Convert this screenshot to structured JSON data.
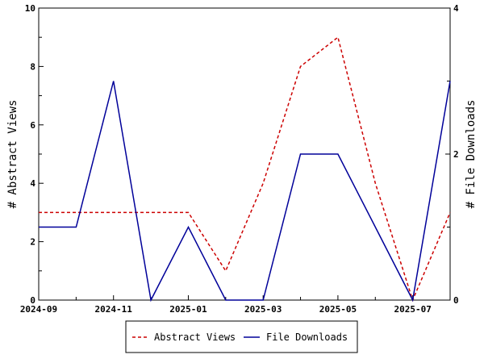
{
  "chart_data": {
    "type": "line",
    "x": [
      "2024-09",
      "2024-10",
      "2024-11",
      "2024-12",
      "2025-01",
      "2025-02",
      "2025-03",
      "2025-04",
      "2025-05",
      "2025-06",
      "2025-07",
      "2025-08"
    ],
    "x_tick_labels": [
      "2024-09",
      "2024-11",
      "2025-01",
      "2025-03",
      "2025-05",
      "2025-07"
    ],
    "ylabel_left": "# Abstract Views",
    "ylabel_right": "# File Downloads",
    "ylim_left": [
      0,
      10
    ],
    "ylim_right": [
      0,
      4
    ],
    "y_ticks_left": [
      0,
      2,
      4,
      6,
      8,
      10
    ],
    "y_ticks_right": [
      0,
      2,
      4
    ],
    "grid": false,
    "legend_position": "bottom",
    "series": [
      {
        "name": "Abstract Views",
        "axis": "left",
        "color": "#cc0000",
        "style": "dashed",
        "values": [
          3,
          3,
          3,
          3,
          3,
          1,
          4,
          8,
          9,
          4,
          0,
          3
        ]
      },
      {
        "name": "File Downloads",
        "axis": "right",
        "color": "#000099",
        "style": "solid",
        "values": [
          1,
          1,
          3,
          0,
          1,
          0,
          0,
          2,
          2,
          1,
          0,
          3
        ]
      }
    ]
  }
}
